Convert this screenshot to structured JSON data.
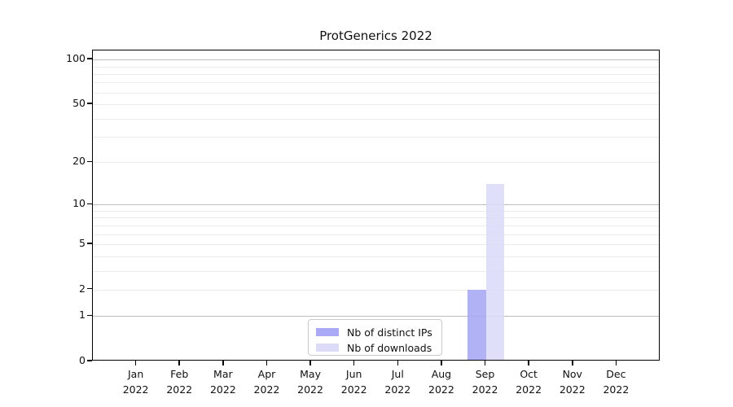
{
  "chart_data": {
    "type": "bar",
    "title": "ProtGenerics 2022",
    "x_year": "2022",
    "categories": [
      "Jan",
      "Feb",
      "Mar",
      "Apr",
      "May",
      "Jun",
      "Jul",
      "Aug",
      "Sep",
      "Oct",
      "Nov",
      "Dec"
    ],
    "series": [
      {
        "name": "Nb of distinct IPs",
        "color": "#a9a9f5",
        "values": [
          0,
          0,
          0,
          0,
          0,
          0,
          0,
          0,
          2,
          0,
          0,
          0
        ]
      },
      {
        "name": "Nb of downloads",
        "color": "#dcdcf9",
        "values": [
          0,
          0,
          0,
          0,
          0,
          0,
          0,
          0,
          14,
          0,
          0,
          0
        ]
      }
    ],
    "yscale": "log1p",
    "ylim": [
      0,
      115
    ],
    "yticks": [
      0,
      1,
      2,
      5,
      10,
      20,
      50,
      100
    ],
    "grid_major": [
      1,
      10,
      100
    ],
    "grid_minor": [
      2,
      3,
      4,
      5,
      6,
      7,
      8,
      9,
      20,
      30,
      40,
      50,
      60,
      70,
      80,
      90
    ],
    "legend_position": "bottom-center",
    "grid": "on"
  },
  "colors": {
    "grid_major": "#bdbdbd",
    "grid_minor": "#ebebeb",
    "axis": "#000000",
    "legend_border": "#cbcbcb",
    "background": "#ffffff"
  }
}
